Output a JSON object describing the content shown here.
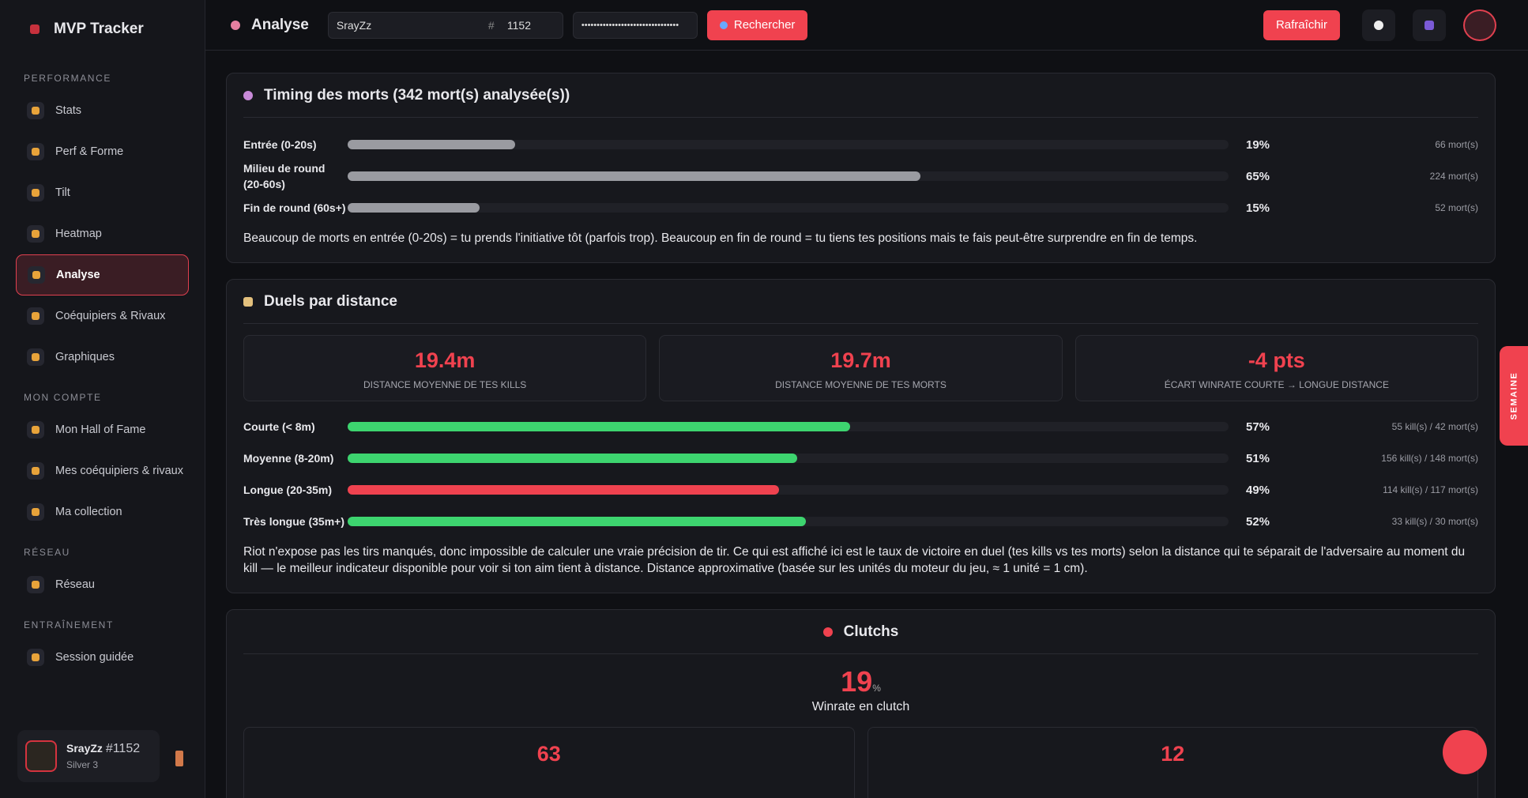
{
  "sidebar": {
    "brand": "MVP Tracker",
    "sections": [
      {
        "title": "PERFORMANCE",
        "items": [
          "Stats",
          "Perf & Forme",
          "Tilt",
          "Heatmap",
          "Analyse",
          "Coéquipiers & Rivaux",
          "Graphiques"
        ]
      },
      {
        "title": "MON COMPTE",
        "items": [
          "Mon Hall of Fame",
          "Mes coéquipiers & rivaux",
          "Ma collection"
        ]
      },
      {
        "title": "RÉSEAU",
        "items": [
          "Réseau"
        ]
      },
      {
        "title": "ENTRAÎNEMENT",
        "items": [
          "Session guidée"
        ]
      }
    ],
    "active": "Analyse",
    "user": {
      "name": "SrayZz",
      "tag": "#1152",
      "rank": "Silver 3"
    }
  },
  "topbar": {
    "title": "Analyse",
    "name": "SrayZz",
    "hash": "#",
    "tag": "1152",
    "key": "••••••••••••••••••••••••••••••••",
    "search": "Rechercher",
    "refresh": "Rafraîchir"
  },
  "side_tab": "SEMAINE",
  "timing": {
    "title": "Timing des morts (342 mort(s) analysée(s))",
    "rows": [
      {
        "label": "Entrée (0-20s)",
        "pct": 19,
        "pct_label": "19%",
        "count": "66 mort(s)"
      },
      {
        "label": "Milieu de round (20-60s)",
        "pct": 65,
        "pct_label": "65%",
        "count": "224 mort(s)"
      },
      {
        "label": "Fin de round (60s+)",
        "pct": 15,
        "pct_label": "15%",
        "count": "52 mort(s)"
      }
    ],
    "color": "#9a9ba1",
    "note": "Beaucoup de morts en entrée (0-20s) = tu prends l'initiative tôt (parfois trop). Beaucoup en fin de round = tu tiens tes positions mais te fais peut-être surprendre en fin de temps."
  },
  "duels": {
    "title": "Duels par distance",
    "stats": [
      {
        "value": "19.4m",
        "label": "DISTANCE MOYENNE DE TES KILLS"
      },
      {
        "value": "19.7m",
        "label": "DISTANCE MOYENNE DE TES MORTS"
      },
      {
        "value": "-4 pts",
        "label": "ÉCART WINRATE COURTE → LONGUE DISTANCE"
      }
    ],
    "rows": [
      {
        "label": "Courte (< 8m)",
        "pct": 57,
        "pct_label": "57%",
        "count": "55 kill(s) / 42 mort(s)",
        "color": "#3dd46f"
      },
      {
        "label": "Moyenne (8-20m)",
        "pct": 51,
        "pct_label": "51%",
        "count": "156 kill(s) / 148 mort(s)",
        "color": "#3dd46f"
      },
      {
        "label": "Longue (20-35m)",
        "pct": 49,
        "pct_label": "49%",
        "count": "114 kill(s) / 117 mort(s)",
        "color": "#f0424f"
      },
      {
        "label": "Très longue (35m+)",
        "pct": 52,
        "pct_label": "52%",
        "count": "33 kill(s) / 30 mort(s)",
        "color": "#3dd46f"
      }
    ],
    "note": "Riot n'expose pas les tirs manqués, donc impossible de calculer une vraie précision de tir. Ce qui est affiché ici est le taux de victoire en duel (tes kills vs tes morts) selon la distance qui te séparait de l'adversaire au moment du kill — le meilleur indicateur disponible pour voir si ton aim tient à distance. Distance approximative (basée sur les unités du moteur du jeu, ≈ 1 unité = 1 cm)."
  },
  "clutch": {
    "title": "Clutchs",
    "rate": 19,
    "unit": "%",
    "label": "Winrate en clutch",
    "cards": [
      63,
      12
    ]
  }
}
